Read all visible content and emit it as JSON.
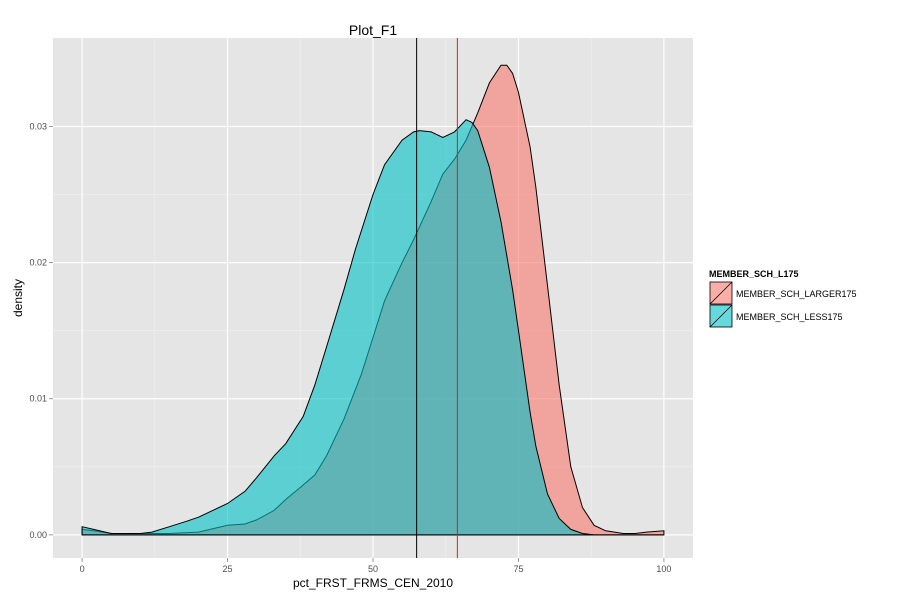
{
  "chart_data": {
    "type": "area",
    "title": "Plot_F1",
    "xlabel": "pct_FRST_FRMS_CEN_2010",
    "ylabel": "density",
    "xlim": [
      -5,
      105
    ],
    "ylim": [
      -0.0017,
      0.0365
    ],
    "x_ticks": [
      0,
      25,
      50,
      75,
      100
    ],
    "x_tick_labels": [
      "0",
      "25",
      "50",
      "75",
      "100"
    ],
    "y_ticks": [
      0.0,
      0.01,
      0.02,
      0.03
    ],
    "y_tick_labels": [
      "0.00",
      "0.01",
      "0.02",
      "0.03"
    ],
    "grid": true,
    "legend": {
      "title": "MEMBER_SCH_L175",
      "placement": "right",
      "entries": [
        "MEMBER_SCH_LARGER175",
        "MEMBER_SCH_LESS175"
      ]
    },
    "series": [
      {
        "name": "MEMBER_SCH_LARGER175",
        "color": "#f8766d",
        "points": [
          [
            0,
            0.0004
          ],
          [
            2,
            0.0003
          ],
          [
            5,
            0.0001
          ],
          [
            10,
            0.0001
          ],
          [
            15,
            0.0001
          ],
          [
            20,
            0.0002
          ],
          [
            22,
            0.0004
          ],
          [
            25,
            0.0007
          ],
          [
            28,
            0.0008
          ],
          [
            30,
            0.0011
          ],
          [
            33,
            0.0018
          ],
          [
            35,
            0.0026
          ],
          [
            37,
            0.0033
          ],
          [
            40,
            0.0044
          ],
          [
            42,
            0.0058
          ],
          [
            45,
            0.0085
          ],
          [
            48,
            0.0118
          ],
          [
            50,
            0.0145
          ],
          [
            52,
            0.0172
          ],
          [
            55,
            0.02
          ],
          [
            57,
            0.0217
          ],
          [
            60,
            0.0245
          ],
          [
            62,
            0.0265
          ],
          [
            64,
            0.0276
          ],
          [
            66,
            0.029
          ],
          [
            68,
            0.031
          ],
          [
            70,
            0.0332
          ],
          [
            72,
            0.0345
          ],
          [
            73,
            0.0345
          ],
          [
            74,
            0.0339
          ],
          [
            75,
            0.0325
          ],
          [
            77,
            0.0285
          ],
          [
            78,
            0.0255
          ],
          [
            80,
            0.0183
          ],
          [
            82,
            0.011
          ],
          [
            84,
            0.005
          ],
          [
            86,
            0.002
          ],
          [
            88,
            0.0007
          ],
          [
            90,
            0.0003
          ],
          [
            93,
            0.0001
          ],
          [
            95,
            0.0001
          ],
          [
            97,
            0.0002
          ],
          [
            100,
            0.0003
          ]
        ]
      },
      {
        "name": "MEMBER_SCH_LESS175",
        "color": "#00bfc4",
        "points": [
          [
            0,
            0.0006
          ],
          [
            2,
            0.0004
          ],
          [
            5,
            0.0001
          ],
          [
            8,
            0.0001
          ],
          [
            10,
            0.0001
          ],
          [
            12,
            0.0002
          ],
          [
            15,
            0.0006
          ],
          [
            18,
            0.001
          ],
          [
            20,
            0.0013
          ],
          [
            22,
            0.0017
          ],
          [
            25,
            0.0023
          ],
          [
            28,
            0.0032
          ],
          [
            30,
            0.0042
          ],
          [
            33,
            0.0058
          ],
          [
            35,
            0.0067
          ],
          [
            38,
            0.0087
          ],
          [
            40,
            0.011
          ],
          [
            42,
            0.0138
          ],
          [
            45,
            0.018
          ],
          [
            47,
            0.021
          ],
          [
            50,
            0.025
          ],
          [
            52,
            0.0272
          ],
          [
            55,
            0.029
          ],
          [
            57,
            0.0296
          ],
          [
            58,
            0.0297
          ],
          [
            60,
            0.0296
          ],
          [
            62,
            0.0292
          ],
          [
            64,
            0.0296
          ],
          [
            66,
            0.0305
          ],
          [
            67,
            0.0303
          ],
          [
            68,
            0.0297
          ],
          [
            70,
            0.027
          ],
          [
            72,
            0.023
          ],
          [
            74,
            0.018
          ],
          [
            75,
            0.015
          ],
          [
            77,
            0.009
          ],
          [
            78,
            0.0065
          ],
          [
            80,
            0.003
          ],
          [
            82,
            0.0012
          ],
          [
            84,
            0.0004
          ],
          [
            86,
            0.0001
          ],
          [
            88,
            0.0
          ],
          [
            90,
            0.0
          ],
          [
            95,
            0.0
          ],
          [
            100,
            0.0
          ]
        ]
      }
    ],
    "vlines": [
      {
        "x": 57.5,
        "color": "#000000"
      },
      {
        "x": 64.5,
        "color": "#e41a1c"
      }
    ]
  }
}
